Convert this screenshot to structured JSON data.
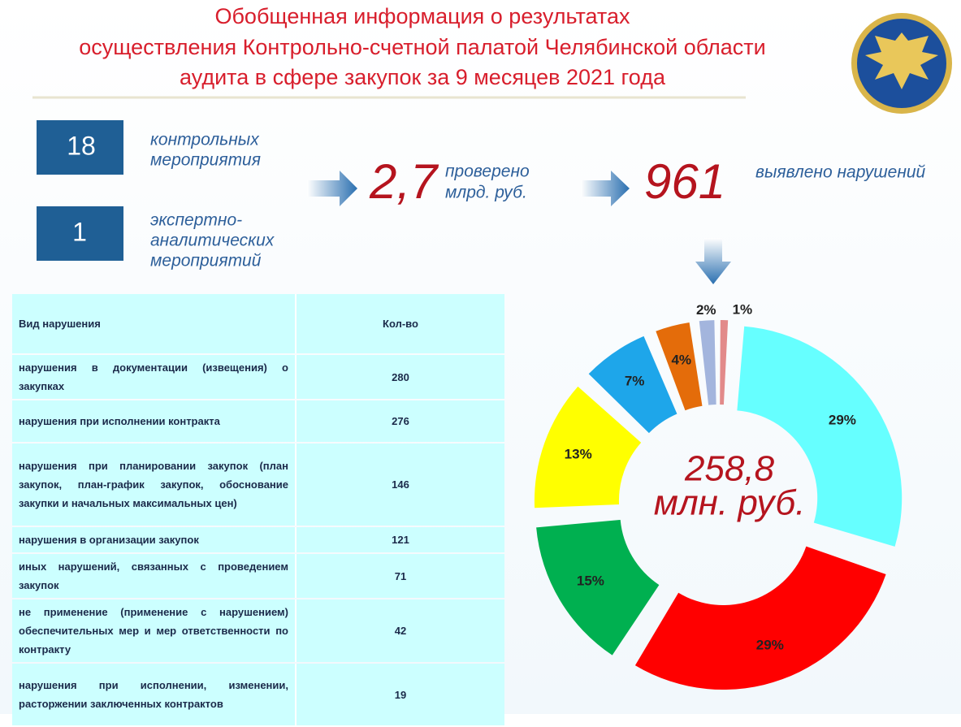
{
  "title": [
    "Обобщенная информация о результатах",
    "осуществления Контрольно-счетной палатой Челябинской области",
    "аудита в сфере закупок за 9 месяцев 2021 года"
  ],
  "events": [
    {
      "count": "18",
      "label": [
        "контрольных",
        "мероприятия"
      ]
    },
    {
      "count": "1",
      "label": [
        "экспертно-",
        "аналитических",
        "мероприятий"
      ]
    }
  ],
  "checked": {
    "value": "2,7",
    "label": [
      "проверено",
      "млрд. руб."
    ]
  },
  "violations": {
    "value": "961",
    "label": "выявлено нарушений"
  },
  "table": {
    "header": [
      "Вид нарушения",
      "Кол-во"
    ],
    "rows": [
      [
        "нарушения в документации (извещения) о закупках",
        280
      ],
      [
        "нарушения при исполнении контракта",
        276
      ],
      [
        "нарушения при планировании закупок (план закупок, план-график закупок, обоснование закупки и начальных максимальных цен)",
        146
      ],
      [
        "нарушения в организации закупок",
        121
      ],
      [
        "иных нарушений, связанных с проведением закупок",
        71
      ],
      [
        "не применение (применение с нарушением) обеспечительных мер и мер ответственности по контракту",
        42
      ],
      [
        "нарушения при исполнении, изменении, расторжении заключенных контрактов",
        19
      ]
    ]
  },
  "chart_data": {
    "type": "donut",
    "center_label": [
      "258,8",
      "млн. руб."
    ],
    "values": [
      29,
      29,
      15,
      13,
      7,
      4,
      2,
      1
    ],
    "value_labels": [
      "29%",
      "29%",
      "15%",
      "13%",
      "7%",
      "4%",
      "2%",
      "1%"
    ],
    "colors": [
      "#66ffff",
      "#ff0000",
      "#00b050",
      "#ffff00",
      "#1ea6ea",
      "#e46c0a",
      "#a3b5dd",
      "#e28a8a"
    ]
  }
}
